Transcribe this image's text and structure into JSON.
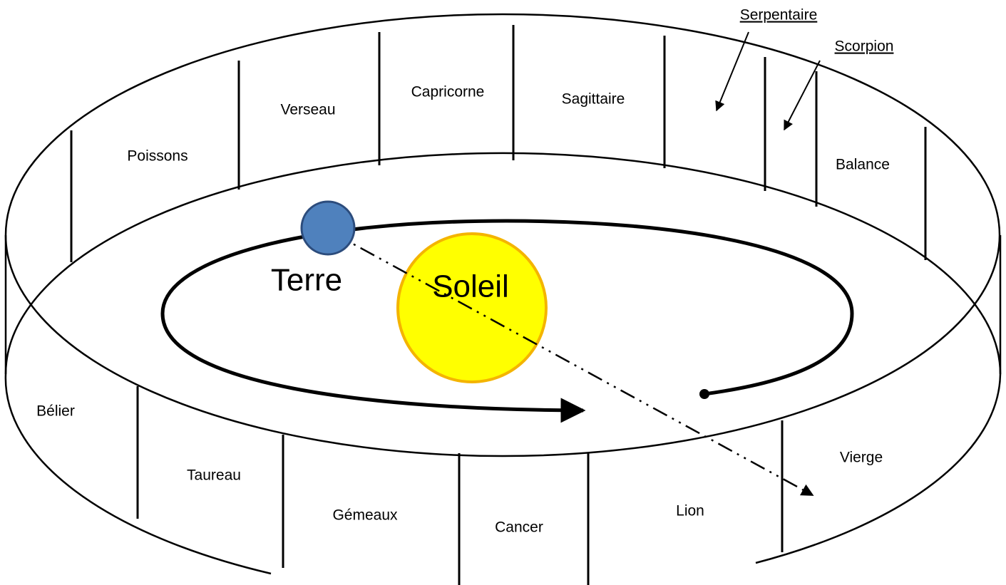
{
  "signs": [
    "Poissons",
    "Verseau",
    "Capricorne",
    "Sagittaire",
    "Balance",
    "Bélier",
    "Taureau",
    "Gémeaux",
    "Cancer",
    "Lion",
    "Vierge"
  ],
  "callouts": [
    "Serpentaire",
    "Scorpion"
  ],
  "sun": {
    "label": "Soleil"
  },
  "earth": {
    "label": "Terre"
  }
}
